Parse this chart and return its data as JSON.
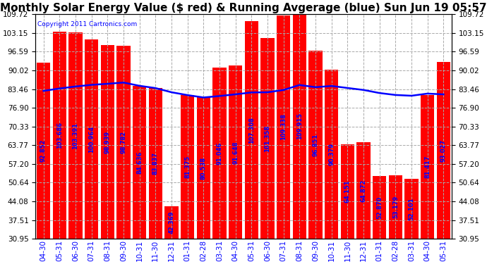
{
  "title": "Monthly Solar Energy Value ($ red) & Running Avgerage (blue) Sun Jun 19 05:57",
  "copyright": "Copyright 2011 Cartronics.com",
  "categories": [
    "04-30",
    "05-31",
    "06-30",
    "07-31",
    "08-31",
    "09-30",
    "10-31",
    "11-30",
    "12-31",
    "01-31",
    "02-28",
    "03-31",
    "04-30",
    "05-31",
    "06-30",
    "07-31",
    "08-31",
    "09-30",
    "10-31",
    "11-30",
    "12-31",
    "01-31",
    "02-28",
    "03-31",
    "04-30",
    "05-31"
  ],
  "bar_values": [
    92.852,
    103.686,
    103.391,
    100.964,
    98.939,
    98.782,
    84.636,
    83.837,
    42.369,
    81.375,
    80.538,
    91.046,
    91.648,
    107.308,
    101.358,
    109.338,
    109.915,
    96.851,
    90.379,
    64.151,
    64.872,
    52.87,
    53.179,
    52.101,
    81.417,
    93.027
  ],
  "running_avg": [
    82.852,
    83.686,
    84.391,
    84.964,
    85.339,
    85.782,
    84.636,
    83.837,
    82.369,
    81.375,
    80.538,
    81.046,
    81.648,
    82.308,
    82.358,
    83.166,
    84.913,
    84.151,
    84.572,
    83.87,
    83.179,
    82.101,
    81.417,
    81.15,
    81.905,
    81.627
  ],
  "ylim_min": 30.95,
  "ylim_max": 109.72,
  "yticks": [
    30.95,
    37.51,
    44.08,
    50.64,
    57.2,
    63.77,
    70.33,
    76.9,
    83.46,
    90.02,
    96.59,
    103.15,
    109.72
  ],
  "bar_color": "#ff0000",
  "line_color": "#0000ff",
  "bg_color": "#ffffff",
  "title_fontsize": 11,
  "tick_fontsize": 7.5,
  "value_fontsize": 6.0
}
